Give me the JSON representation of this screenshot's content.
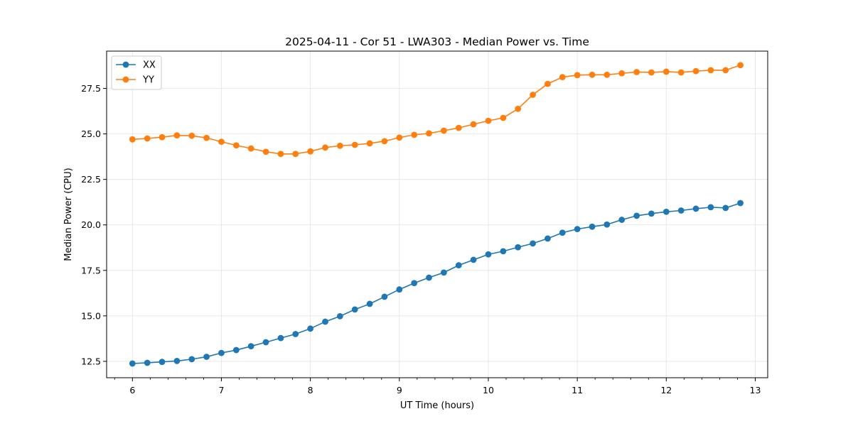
{
  "chart_data": {
    "type": "line",
    "title": "2025-04-11 - Cor 51 - LWA303 - Median Power vs. Time",
    "xlabel": "UT Time (hours)",
    "ylabel": "Median Power (CPU)",
    "xlim": [
      5.71,
      13.14
    ],
    "ylim": [
      11.6,
      29.55
    ],
    "xticks": [
      6,
      7,
      8,
      9,
      10,
      11,
      12,
      13
    ],
    "xtick_labels": [
      "6",
      "7",
      "8",
      "9",
      "10",
      "11",
      "12",
      "13"
    ],
    "yticks": [
      12.5,
      15.0,
      17.5,
      20.0,
      22.5,
      25.0,
      27.5
    ],
    "ytick_labels": [
      "12.5",
      "15.0",
      "17.5",
      "20.0",
      "22.5",
      "25.0",
      "27.5"
    ],
    "grid": true,
    "legend_position": "top-left",
    "x": [
      6.0,
      6.167,
      6.333,
      6.5,
      6.667,
      6.833,
      7.0,
      7.167,
      7.333,
      7.5,
      7.667,
      7.833,
      8.0,
      8.167,
      8.333,
      8.5,
      8.667,
      8.833,
      9.0,
      9.167,
      9.333,
      9.5,
      9.667,
      9.833,
      10.0,
      10.167,
      10.333,
      10.5,
      10.667,
      10.833,
      11.0,
      11.167,
      11.333,
      11.5,
      11.667,
      11.833,
      12.0,
      12.167,
      12.333,
      12.5,
      12.667,
      12.833
    ],
    "series": [
      {
        "name": "XX",
        "color": "#1f77b4",
        "values": [
          12.38,
          12.42,
          12.47,
          12.52,
          12.62,
          12.75,
          12.96,
          13.12,
          13.33,
          13.55,
          13.78,
          14.0,
          14.3,
          14.68,
          14.98,
          15.35,
          15.66,
          16.05,
          16.45,
          16.8,
          17.1,
          17.38,
          17.78,
          18.08,
          18.38,
          18.55,
          18.77,
          18.98,
          19.25,
          19.57,
          19.77,
          19.9,
          20.02,
          20.28,
          20.5,
          20.62,
          20.72,
          20.79,
          20.89,
          20.97,
          20.93,
          21.2
        ]
      },
      {
        "name": "YY",
        "color": "#ff7f0e",
        "values": [
          24.7,
          24.75,
          24.82,
          24.92,
          24.9,
          24.78,
          24.57,
          24.37,
          24.2,
          24.02,
          23.9,
          23.9,
          24.04,
          24.25,
          24.35,
          24.4,
          24.48,
          24.6,
          24.8,
          24.95,
          25.03,
          25.18,
          25.33,
          25.53,
          25.72,
          25.88,
          26.38,
          27.15,
          27.75,
          28.12,
          28.23,
          28.25,
          28.25,
          28.33,
          28.4,
          28.38,
          28.42,
          28.38,
          28.45,
          28.5,
          28.5,
          28.78
        ]
      }
    ]
  }
}
